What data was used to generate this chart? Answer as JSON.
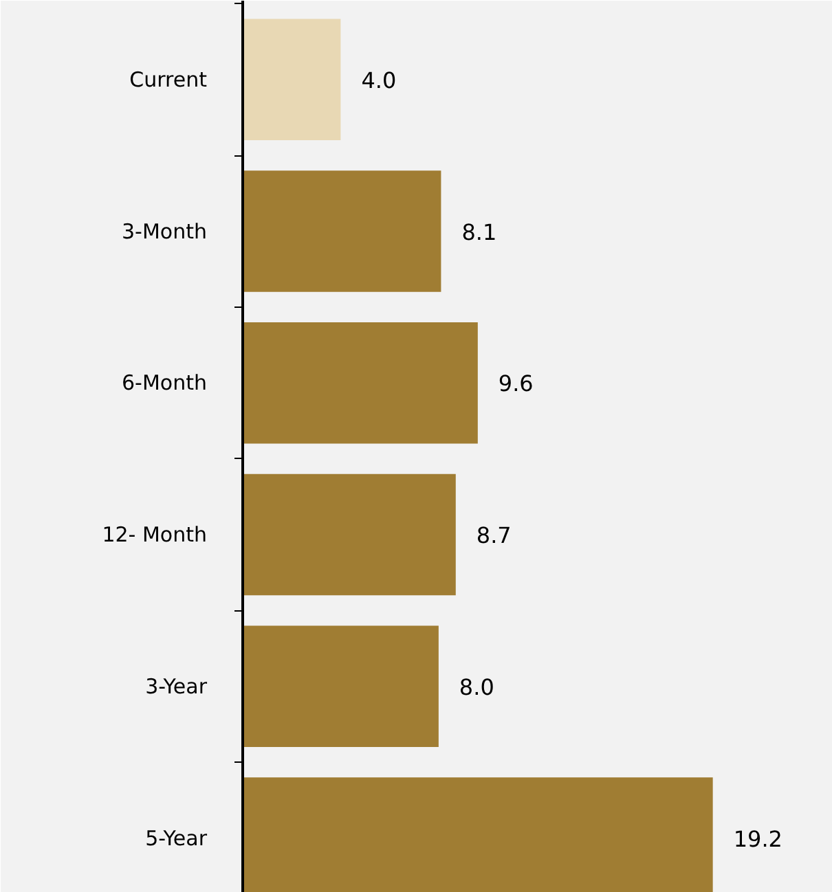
{
  "chart_data": {
    "type": "bar",
    "orientation": "horizontal",
    "categories": [
      "Current",
      "3-Month",
      "6-Month",
      "12- Month",
      "3-Year",
      "5-Year"
    ],
    "values": [
      4.0,
      8.1,
      9.6,
      8.7,
      8.0,
      19.2
    ],
    "colors": [
      "#e8d8b4",
      "#a07d33",
      "#a07d33",
      "#a07d33",
      "#a07d33",
      "#a07d33"
    ],
    "value_labels": [
      "4.0",
      "8.1",
      "9.6",
      "8.7",
      "8.0",
      "19.2"
    ]
  }
}
